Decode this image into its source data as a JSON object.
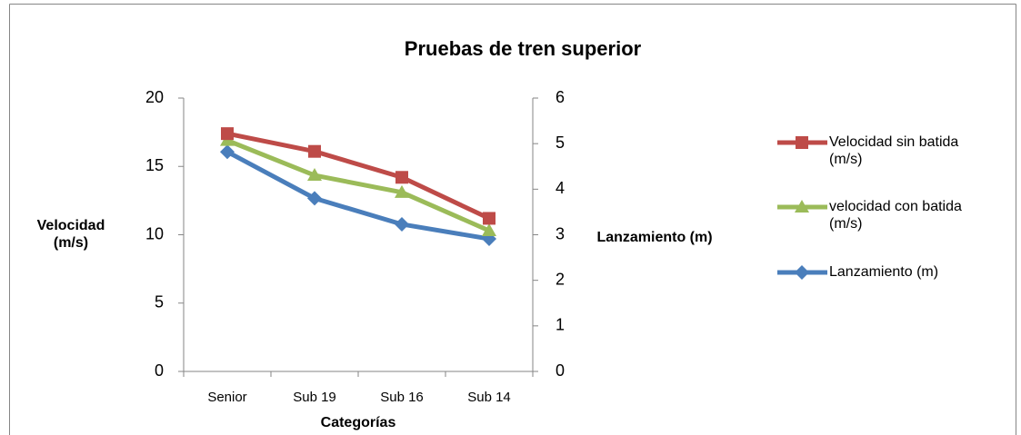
{
  "chart_data": {
    "type": "line",
    "title": "Pruebas de tren superior",
    "categories": [
      "Senior",
      "Sub 19",
      "Sub 16",
      "Sub 14"
    ],
    "x_label": "Categorías",
    "y_label": "Velocidad (m/s)",
    "y2_label": "Lanzamiento (m)",
    "ylim": [
      0,
      20
    ],
    "yticks": [
      0,
      5,
      10,
      15,
      20
    ],
    "y2lim": [
      0,
      6
    ],
    "y2ticks": [
      0,
      1,
      2,
      3,
      4,
      5,
      6
    ],
    "legend": "right",
    "series": [
      {
        "name": "Velocidad sin batida (m/s)",
        "color": "#be4b48",
        "marker": "square",
        "values": [
          17.4,
          16.1,
          14.2,
          11.2
        ]
      },
      {
        "name": "velocidad con batida (m/s)",
        "color": "#9bbb59",
        "marker": "triangle",
        "values": [
          16.9,
          14.35,
          13.1,
          10.3
        ]
      },
      {
        "name": "Lanzamiento (m)",
        "color": "#4a7ebb",
        "marker": "diamond",
        "axis": "y2",
        "values": [
          4.82,
          3.8,
          3.23,
          2.91
        ]
      }
    ]
  }
}
